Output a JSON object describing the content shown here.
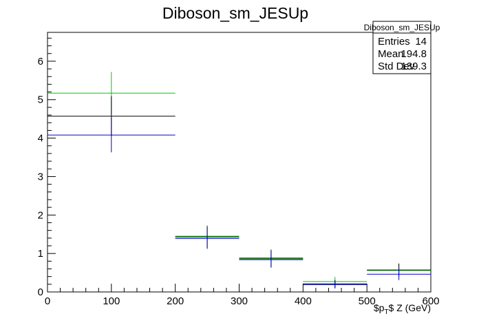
{
  "chart_data": {
    "type": "histogram-errorbars",
    "title": "Diboson_sm_JESUp",
    "xlabel": "$p_{T}$ Z (GeV)",
    "ylabel": "",
    "xlim": [
      0,
      600
    ],
    "ylim": [
      0,
      6.75
    ],
    "x_ticks": [
      0,
      100,
      200,
      300,
      400,
      500,
      600
    ],
    "y_ticks": [
      0,
      1,
      2,
      3,
      4,
      5,
      6
    ],
    "grid": false,
    "stats_box": {
      "title": "Diboson_sm_JESUp",
      "rows": [
        {
          "label": "Entries",
          "value": "14"
        },
        {
          "label": "Mean",
          "value": "194.8"
        },
        {
          "label": "Std Dev",
          "value": "139.3"
        }
      ],
      "placement": "top-right"
    },
    "series": [
      {
        "color": "#00cc00",
        "bins": [
          {
            "x_low": 0,
            "x_high": 200,
            "x_center": 100,
            "y": 5.17,
            "err": 0.55
          },
          {
            "x_low": 200,
            "x_high": 300,
            "x_center": 250,
            "y": 1.45,
            "err": 0.28
          },
          {
            "x_low": 300,
            "x_high": 400,
            "x_center": 350,
            "y": 0.86,
            "err": 0.22
          },
          {
            "x_low": 400,
            "x_high": 500,
            "x_center": 450,
            "y": 0.27,
            "err": 0.12
          },
          {
            "x_low": 500,
            "x_high": 600,
            "x_center": 550,
            "y": 0.56,
            "err": 0.17
          }
        ]
      },
      {
        "color": "#000000",
        "bins": [
          {
            "x_low": 0,
            "x_high": 200,
            "x_center": 100,
            "y": 4.57,
            "err": 0.52
          },
          {
            "x_low": 200,
            "x_high": 300,
            "x_center": 250,
            "y": 1.43,
            "err": 0.28
          },
          {
            "x_low": 300,
            "x_high": 400,
            "x_center": 350,
            "y": 0.88,
            "err": 0.22
          },
          {
            "x_low": 400,
            "x_high": 500,
            "x_center": 450,
            "y": 0.21,
            "err": 0.1
          },
          {
            "x_low": 500,
            "x_high": 600,
            "x_center": 550,
            "y": 0.57,
            "err": 0.17
          }
        ]
      },
      {
        "color": "#0000cc",
        "bins": [
          {
            "x_low": 0,
            "x_high": 200,
            "x_center": 100,
            "y": 4.08,
            "err": 0.45
          },
          {
            "x_low": 200,
            "x_high": 300,
            "x_center": 250,
            "y": 1.39,
            "err": 0.27
          },
          {
            "x_low": 300,
            "x_high": 400,
            "x_center": 350,
            "y": 0.84,
            "err": 0.21
          },
          {
            "x_low": 400,
            "x_high": 500,
            "x_center": 450,
            "y": 0.19,
            "err": 0.1
          },
          {
            "x_low": 500,
            "x_high": 600,
            "x_center": 550,
            "y": 0.46,
            "err": 0.15
          }
        ]
      }
    ]
  }
}
